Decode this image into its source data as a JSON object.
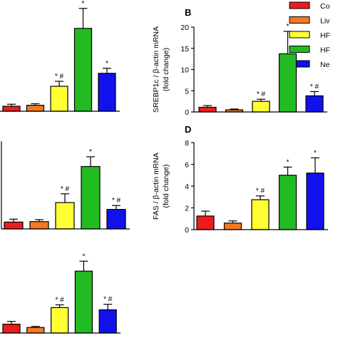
{
  "legend": [
    {
      "label": "Co",
      "color": "#ee1c1c"
    },
    {
      "label": "Liv",
      "color": "#f47920"
    },
    {
      "label": "HF",
      "color": "#ffff33"
    },
    {
      "label": "HF",
      "color": "#22bb22"
    },
    {
      "label": "Ne",
      "color": "#1111ee"
    }
  ],
  "colors": [
    "#ee1c1c",
    "#f47920",
    "#ffff33",
    "#22bb22",
    "#1111ee"
  ],
  "chart_data": [
    {
      "type": "bar",
      "panel": "",
      "values": [
        0.5,
        0.6,
        2.5,
        8.3,
        3.8
      ],
      "errors": [
        0.2,
        0.15,
        0.5,
        2.0,
        0.5
      ],
      "annotations": [
        "",
        "",
        "*#",
        "*",
        "*"
      ],
      "ylabel": "",
      "yticks": [],
      "ylim": [
        0,
        10
      ],
      "error_bars": true
    },
    {
      "type": "bar",
      "panel": "B",
      "values": [
        1.1,
        0.5,
        2.5,
        13.7,
        3.8
      ],
      "errors": [
        0.4,
        0.2,
        0.5,
        5.3,
        1.0
      ],
      "annotations": [
        "",
        "",
        "*#",
        "*",
        "*#"
      ],
      "ylabel": "SREBP1c / β-actin mRNA",
      "ylabel2": "(fold change)",
      "yticks": [
        "0",
        "5",
        "10",
        "15",
        "20"
      ],
      "ylim": [
        0,
        20
      ],
      "error_bars": true
    },
    {
      "type": "bar",
      "panel": "",
      "values": [
        0.7,
        0.75,
        2.7,
        6.4,
        2.0
      ],
      "errors": [
        0.3,
        0.2,
        0.9,
        1.0,
        0.4
      ],
      "annotations": [
        "",
        "",
        "*#",
        "*",
        "*#"
      ],
      "ylabel": "",
      "yticks": [],
      "ylim": [
        0,
        9
      ],
      "error_bars": true
    },
    {
      "type": "bar",
      "panel": "D",
      "values": [
        1.25,
        0.6,
        2.75,
        5.0,
        5.2
      ],
      "errors": [
        0.45,
        0.2,
        0.35,
        0.75,
        1.4
      ],
      "annotations": [
        "",
        "",
        "*#",
        "*",
        "*"
      ],
      "ylabel": "FAS / β-actin mRNA",
      "ylabel2": "(fold change)",
      "yticks": [
        "0",
        "2",
        "4",
        "6",
        "8"
      ],
      "ylim": [
        0,
        8
      ],
      "error_bars": true
    },
    {
      "type": "bar",
      "panel": "",
      "values": [
        0.8,
        0.5,
        2.3,
        5.6,
        2.1
      ],
      "errors": [
        0.25,
        0.1,
        0.25,
        0.9,
        0.5
      ],
      "annotations": [
        "",
        "",
        "*#",
        "*",
        "*#"
      ],
      "ylabel": "",
      "yticks": [],
      "ylim": [
        0,
        8
      ],
      "error_bars": true
    }
  ]
}
